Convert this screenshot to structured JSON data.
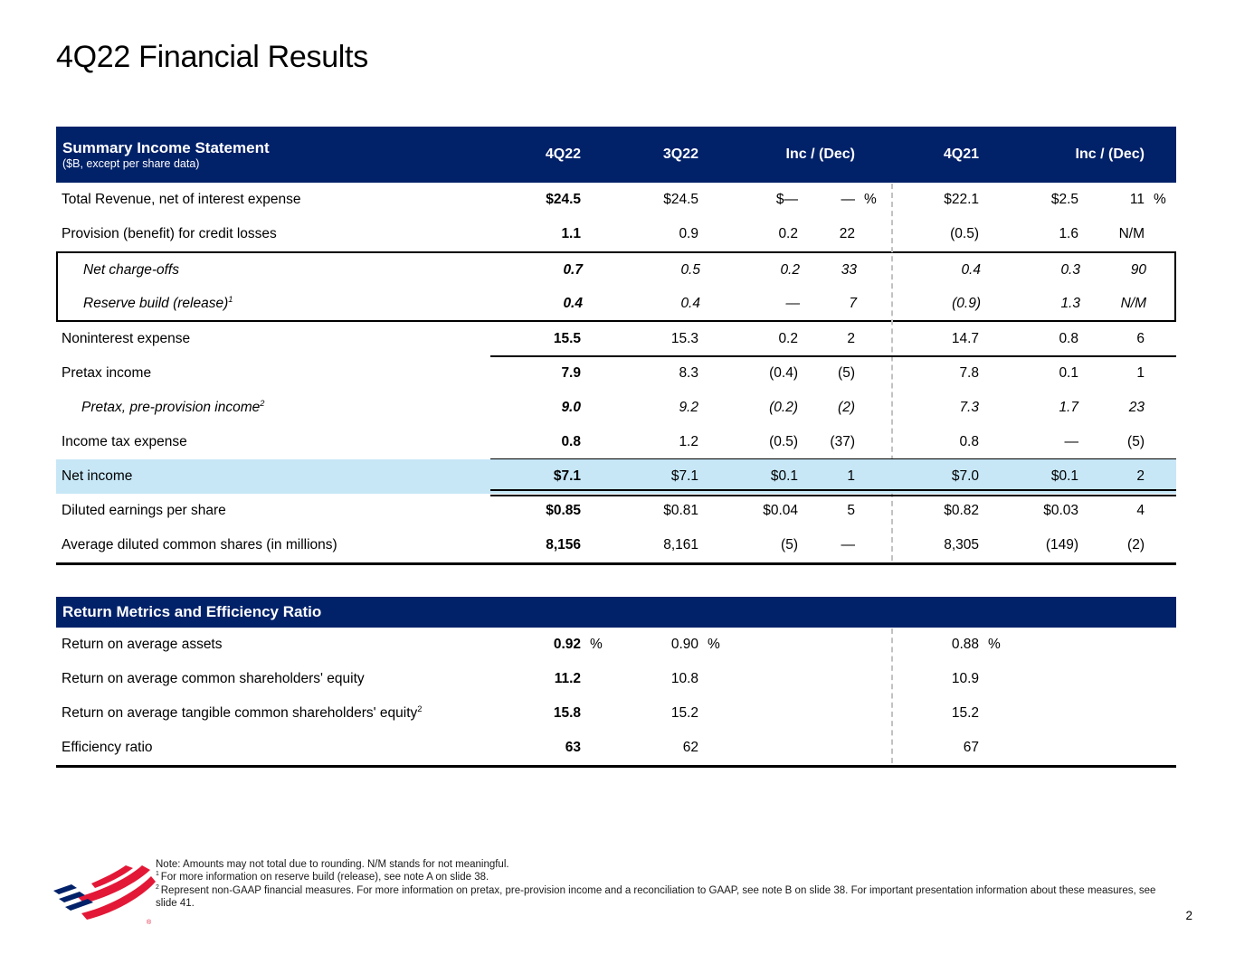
{
  "page": {
    "title": "4Q22 Financial Results",
    "page_number": "2"
  },
  "colors": {
    "navy": "#012169",
    "highlight_blue": "#c7e7f7",
    "logo_red": "#e31837",
    "logo_blue": "#012169"
  },
  "income_table": {
    "header": {
      "title": "Summary Income Statement",
      "subtitle": "($B, except per share data)",
      "columns": [
        "4Q22",
        "3Q22",
        "Inc / (Dec)",
        "4Q21",
        "Inc / (Dec)"
      ]
    },
    "rows": [
      {
        "label": "Total Revenue, net of interest expense",
        "c": [
          "$24.5",
          "$24.5",
          "$—",
          "—",
          "$22.1",
          "$2.5",
          "11"
        ],
        "u1": "%",
        "u2": "%"
      },
      {
        "label": "Provision (benefit) for credit losses",
        "c": [
          "1.1",
          "0.9",
          "0.2",
          "22",
          "(0.5)",
          "1.6",
          "N/M"
        ]
      },
      {
        "label": "Net charge-offs",
        "box": true,
        "italic": true,
        "indent": true,
        "c": [
          "0.7",
          "0.5",
          "0.2",
          "33",
          "0.4",
          "0.3",
          "90"
        ]
      },
      {
        "label": "Reserve build (release)",
        "sup": "1",
        "box": true,
        "italic": true,
        "indent": true,
        "c": [
          "0.4",
          "0.4",
          "—",
          "7",
          "(0.9)",
          "1.3",
          "N/M"
        ]
      },
      {
        "label": "Noninterest expense",
        "c": [
          "15.5",
          "15.3",
          "0.2",
          "2",
          "14.7",
          "0.8",
          "6"
        ],
        "rule_after": "single"
      },
      {
        "label": "Pretax income",
        "c": [
          "7.9",
          "8.3",
          "(0.4)",
          "(5)",
          "7.8",
          "0.1",
          "1"
        ]
      },
      {
        "label": "Pretax, pre-provision income",
        "sup": "2",
        "italic": true,
        "indent": true,
        "c": [
          "9.0",
          "9.2",
          "(0.2)",
          "(2)",
          "7.3",
          "1.7",
          "23"
        ]
      },
      {
        "label": "Income tax expense",
        "c": [
          "0.8",
          "1.2",
          "(0.5)",
          "(37)",
          "0.8",
          "—",
          "(5)"
        ],
        "rule_after": "single"
      },
      {
        "label": "Net income",
        "highlight": true,
        "c": [
          "$7.1",
          "$7.1",
          "$0.1",
          "1",
          "$7.0",
          "$0.1",
          "2"
        ],
        "rule_after": "double"
      },
      {
        "label": "Diluted earnings per share",
        "c": [
          "$0.85",
          "$0.81",
          "$0.04",
          "5",
          "$0.82",
          "$0.03",
          "4"
        ]
      },
      {
        "label": "Average diluted common shares (in millions)",
        "c": [
          "8,156",
          "8,161",
          "(5)",
          "—",
          "8,305",
          "(149)",
          "(2)"
        ]
      }
    ]
  },
  "return_table": {
    "header": "Return Metrics and Efficiency Ratio",
    "rows": [
      {
        "label": "Return on average assets",
        "c": [
          "0.92",
          "0.90",
          "0.88"
        ],
        "units": [
          "%",
          "%",
          "%"
        ]
      },
      {
        "label": "Return on average common shareholders' equity",
        "c": [
          "11.2",
          "10.8",
          "10.9"
        ]
      },
      {
        "label": "Return on average tangible common shareholders' equity",
        "sup": "2",
        "c": [
          "15.8",
          "15.2",
          "15.2"
        ]
      },
      {
        "label": "Efficiency ratio",
        "c": [
          "63",
          "62",
          "67"
        ]
      }
    ]
  },
  "footnotes": [
    {
      "sup": "",
      "text": "Note: Amounts may not total due to rounding. N/M stands for not meaningful."
    },
    {
      "sup": "1",
      "text": "For more information on reserve build (release), see note A on slide 38."
    },
    {
      "sup": "2",
      "text": "Represent non-GAAP financial measures. For more information on pretax, pre-provision income and a reconciliation to GAAP, see note B on slide 38. For important presentation information about these measures, see slide 41."
    }
  ],
  "logo_name": "bank-of-america-flag"
}
